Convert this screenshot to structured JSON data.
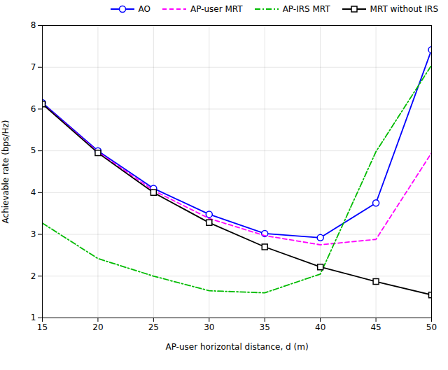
{
  "chart_data": {
    "type": "line",
    "x": [
      15,
      20,
      25,
      30,
      35,
      40,
      45,
      50
    ],
    "series": [
      {
        "name": "AO",
        "color": "#0000ff",
        "line_style": "solid",
        "marker": "circle",
        "values": [
          6.15,
          5.0,
          4.1,
          3.48,
          3.02,
          2.92,
          3.75,
          7.42
        ]
      },
      {
        "name": "AP-user MRT",
        "color": "#ff00ff",
        "line_style": "dashed",
        "values": [
          6.13,
          4.97,
          4.05,
          3.38,
          2.97,
          2.75,
          2.88,
          4.95
        ]
      },
      {
        "name": "AP-IRS MRT",
        "color": "#00bb00",
        "line_style": "dashdot",
        "values": [
          3.27,
          2.42,
          2.0,
          1.65,
          1.6,
          2.05,
          4.98,
          7.05
        ]
      },
      {
        "name": "MRT without IRS",
        "color": "#000000",
        "line_style": "solid",
        "marker": "square",
        "values": [
          6.12,
          4.95,
          4.0,
          3.28,
          2.7,
          2.22,
          1.87,
          1.55
        ]
      }
    ],
    "xlabel": "AP-user horizontal distance, d (m)",
    "ylabel": "Achievable rate (bps/Hz)",
    "xlim": [
      15,
      50
    ],
    "ylim": [
      1,
      8
    ],
    "xticks": [
      15,
      20,
      25,
      30,
      35,
      40,
      45,
      50
    ],
    "yticks": [
      1,
      2,
      3,
      4,
      5,
      6,
      7,
      8
    ],
    "grid": true,
    "legend": "upper right"
  }
}
